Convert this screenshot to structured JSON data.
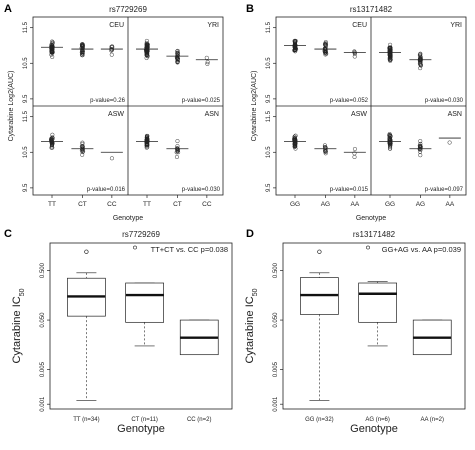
{
  "panel_letters": [
    "A",
    "B",
    "C",
    "D"
  ],
  "chart_data": [
    {
      "type": "scatter",
      "panel": "A",
      "title": "rs7729269",
      "xlabel": "Genotype",
      "ylabel": "Cytarabine Log2(AUC)",
      "yticks": [
        "9.5",
        "10.5",
        "11.5"
      ],
      "ylim": [
        9.3,
        11.8
      ],
      "categories": [
        "TT",
        "CT",
        "CC"
      ],
      "subpanels": [
        {
          "name": "CEU",
          "pvalue": "p-value=0.26",
          "medians": [
            10.95,
            10.9,
            10.9
          ],
          "n": [
            60,
            30,
            8
          ]
        },
        {
          "name": "YRI",
          "pvalue": "p-value=0.025",
          "medians": [
            10.9,
            10.7,
            10.6
          ],
          "n": [
            70,
            25,
            3
          ]
        },
        {
          "name": "ASW",
          "pvalue": "p-value=0.016",
          "medians": [
            10.8,
            10.6,
            10.5
          ],
          "n": [
            35,
            15,
            1
          ]
        },
        {
          "name": "ASN",
          "pvalue": "p-value=0.030",
          "medians": [
            10.8,
            10.6,
            10.4
          ],
          "n": [
            50,
            12,
            0
          ]
        }
      ]
    },
    {
      "type": "scatter",
      "panel": "B",
      "title": "rs13171482",
      "xlabel": "Genotype",
      "ylabel": "Cytarabine Log2(AUC)",
      "yticks": [
        "9.5",
        "10.5",
        "11.5"
      ],
      "ylim": [
        9.3,
        11.8
      ],
      "categories": [
        "GG",
        "AG",
        "AA"
      ],
      "subpanels": [
        {
          "name": "CEU",
          "pvalue": "p-value=0.052",
          "medians": [
            11.0,
            10.9,
            10.8
          ],
          "n": [
            40,
            30,
            5
          ]
        },
        {
          "name": "YRI",
          "pvalue": "p-value=0.030",
          "medians": [
            10.8,
            10.6,
            10.4
          ],
          "n": [
            70,
            25,
            0
          ]
        },
        {
          "name": "ASW",
          "pvalue": "p-value=0.015",
          "medians": [
            10.8,
            10.6,
            10.5
          ],
          "n": [
            40,
            12,
            3
          ]
        },
        {
          "name": "ASN",
          "pvalue": "p-value=0.097",
          "medians": [
            10.8,
            10.6,
            10.9
          ],
          "n": [
            40,
            15,
            1
          ]
        }
      ]
    },
    {
      "type": "box",
      "panel": "C",
      "title": "rs7729269",
      "xlabel": "Genotype",
      "ylabel": "Cytarabine IC",
      "ylabel_sub": "50",
      "annotation": "TT+CT vs. CC p=0.038",
      "yticks": [
        "0.001",
        "0.005",
        "0.050",
        "0.500"
      ],
      "categories": [
        "TT (n=34)",
        "CT (n=11)",
        "CC (n=2)"
      ],
      "boxes": [
        {
          "whisker_low": 0.0012,
          "q1": 0.06,
          "median": 0.15,
          "q3": 0.35,
          "whisker_high": 0.45,
          "outliers": [
            1.2
          ]
        },
        {
          "whisker_low": 0.015,
          "q1": 0.045,
          "median": 0.16,
          "q3": 0.28,
          "whisker_high": 0.28,
          "outliers": []
        },
        {
          "whisker_low": 0.01,
          "q1": 0.01,
          "median": 0.022,
          "q3": 0.05,
          "whisker_high": 0.05,
          "outliers": []
        }
      ]
    },
    {
      "type": "box",
      "panel": "D",
      "title": "rs13171482",
      "xlabel": "Genotype",
      "ylabel": "Cytarabine IC",
      "ylabel_sub": "50",
      "annotation": "GG+AG vs. AA p=0.039",
      "yticks": [
        "0.001",
        "0.005",
        "0.050",
        "0.500"
      ],
      "categories": [
        "GG (n=32)",
        "AG (n=6)",
        "AA (n=2)"
      ],
      "boxes": [
        {
          "whisker_low": 0.0012,
          "q1": 0.065,
          "median": 0.16,
          "q3": 0.36,
          "whisker_high": 0.45,
          "outliers": [
            1.2
          ]
        },
        {
          "whisker_low": 0.015,
          "q1": 0.045,
          "median": 0.17,
          "q3": 0.28,
          "whisker_high": 0.3,
          "outliers": []
        },
        {
          "whisker_low": 0.01,
          "q1": 0.01,
          "median": 0.022,
          "q3": 0.05,
          "whisker_high": 0.05,
          "outliers": []
        }
      ]
    }
  ]
}
